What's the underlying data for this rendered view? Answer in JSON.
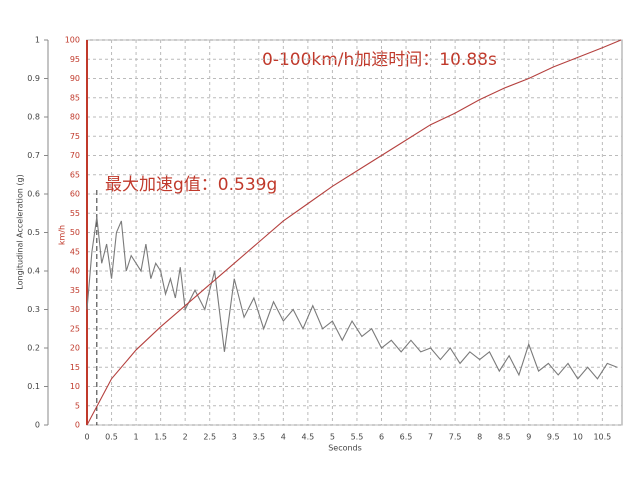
{
  "chart_data": {
    "type": "line",
    "annotations": [
      "0-100km/h加速时间：10.88s",
      "最大加速g值：0.539g"
    ],
    "xlabel": "Seconds",
    "ylabel": "Longitudinal Acceleration (g)",
    "y2label": "km/h",
    "xlim": [
      0,
      10.9
    ],
    "xticks": [
      0,
      0.5,
      1,
      1.5,
      2,
      2.5,
      3,
      3.5,
      4,
      4.5,
      5,
      5.5,
      6,
      6.5,
      7,
      7.5,
      8,
      8.5,
      9,
      9.5,
      10,
      10.5
    ],
    "ylim": [
      0,
      1
    ],
    "yticks": [
      0,
      0.1,
      0.2,
      0.3,
      0.4,
      0.5,
      0.6,
      0.7,
      0.8,
      0.9,
      1
    ],
    "y2lim": [
      0,
      100
    ],
    "y2ticks": [
      0,
      5,
      10,
      15,
      20,
      25,
      30,
      35,
      40,
      45,
      50,
      55,
      60,
      65,
      70,
      75,
      80,
      85,
      90,
      95,
      100
    ],
    "grid": true,
    "reference_line_x": 0.2,
    "series": [
      {
        "color": "#7a7a7a",
        "x": [
          0,
          0.1,
          0.2,
          0.3,
          0.4,
          0.5,
          0.6,
          0.7,
          0.8,
          0.9,
          1.0,
          1.1,
          1.2,
          1.3,
          1.4,
          1.5,
          1.6,
          1.7,
          1.8,
          1.9,
          2.0,
          2.2,
          2.4,
          2.6,
          2.8,
          3.0,
          3.2,
          3.4,
          3.6,
          3.8,
          4.0,
          4.2,
          4.4,
          4.6,
          4.8,
          5.0,
          5.2,
          5.4,
          5.6,
          5.8,
          6.0,
          6.2,
          6.4,
          6.6,
          6.8,
          7.0,
          7.2,
          7.4,
          7.6,
          7.8,
          8.0,
          8.2,
          8.4,
          8.6,
          8.8,
          9.0,
          9.2,
          9.4,
          9.6,
          9.8,
          10.0,
          10.2,
          10.4,
          10.6,
          10.8
        ],
        "values": [
          0.3,
          0.45,
          0.54,
          0.42,
          0.47,
          0.38,
          0.5,
          0.53,
          0.4,
          0.44,
          0.42,
          0.4,
          0.47,
          0.38,
          0.42,
          0.4,
          0.34,
          0.38,
          0.33,
          0.41,
          0.3,
          0.35,
          0.3,
          0.4,
          0.19,
          0.38,
          0.28,
          0.33,
          0.25,
          0.32,
          0.27,
          0.3,
          0.25,
          0.31,
          0.25,
          0.27,
          0.22,
          0.27,
          0.23,
          0.25,
          0.2,
          0.22,
          0.19,
          0.22,
          0.19,
          0.2,
          0.17,
          0.2,
          0.16,
          0.19,
          0.17,
          0.19,
          0.14,
          0.18,
          0.13,
          0.21,
          0.14,
          0.16,
          0.13,
          0.16,
          0.12,
          0.15,
          0.12,
          0.16,
          0.15
        ]
      },
      {
        "color": "#b5413f",
        "axis": "y2",
        "x": [
          0,
          0.5,
          1,
          1.5,
          2,
          2.5,
          3,
          3.5,
          4,
          4.5,
          5,
          5.5,
          6,
          6.5,
          7,
          7.5,
          8,
          8.5,
          9,
          9.5,
          10,
          10.5,
          10.88
        ],
        "values": [
          0,
          12,
          19.5,
          25.5,
          31,
          36.5,
          42,
          47.5,
          53,
          57.5,
          62,
          66,
          70,
          74,
          78,
          81,
          84.5,
          87.5,
          90,
          93,
          95.5,
          98,
          100
        ]
      }
    ]
  }
}
